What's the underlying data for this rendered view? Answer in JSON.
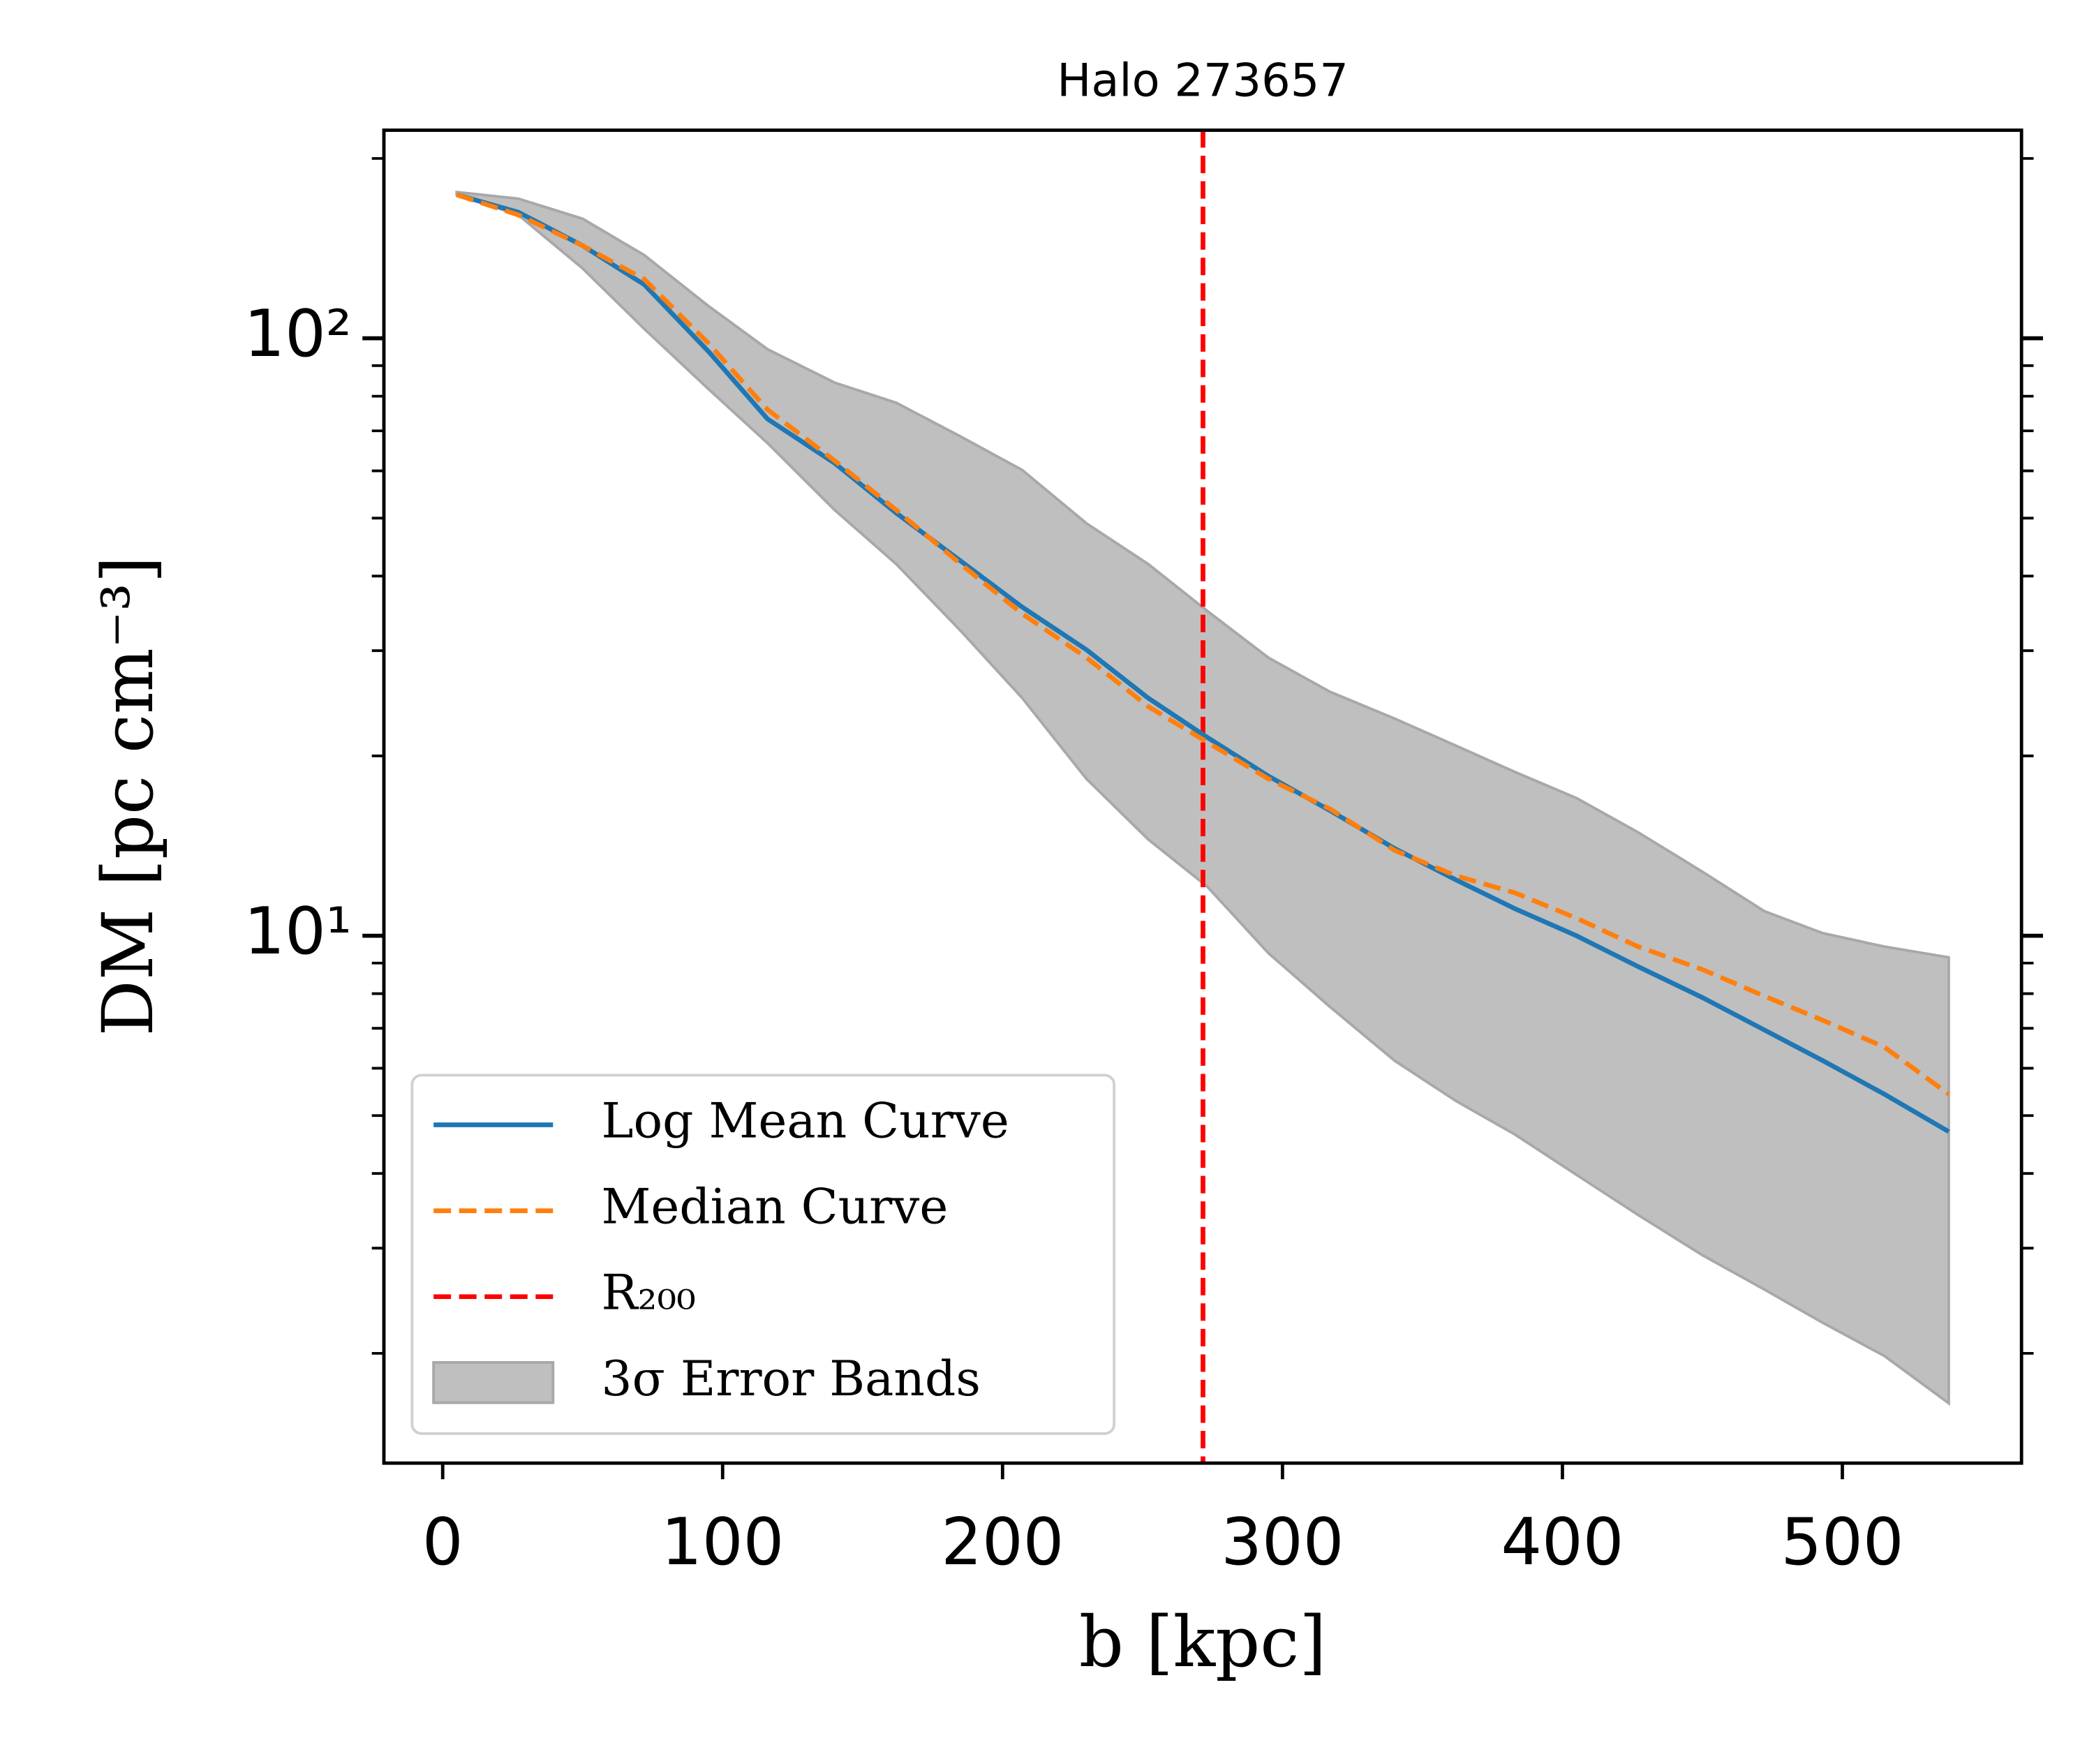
{
  "chart_data": {
    "type": "line",
    "title": "Halo 273657",
    "xlabel": "b [kpc]",
    "ylabel": "DM [pc cm⁻³]",
    "yscale": "log",
    "legend": "lower left",
    "x": [
      5,
      27,
      50,
      72,
      95,
      116,
      140,
      162,
      185,
      207,
      230,
      252,
      273,
      295,
      317,
      340,
      362,
      383,
      405,
      427,
      450,
      472,
      493,
      515,
      538
    ],
    "series": [
      {
        "name": "Log Mean Curve",
        "color": "#1f77b4",
        "style": "solid",
        "values": [
          173.9,
          162.6,
          142.9,
          123,
          95.0,
          73.3,
          61.8,
          51.0,
          42.4,
          35.5,
          30.1,
          25.0,
          21.5,
          18.5,
          16.2,
          14.0,
          12.4,
          11.1,
          10.0,
          8.88,
          7.88,
          6.96,
          6.18,
          5.43,
          4.7
        ]
      },
      {
        "name": "Median Curve",
        "color": "#ff7f0e",
        "style": "dashed",
        "values": [
          173.9,
          160.9,
          142.9,
          125.6,
          98.0,
          76.0,
          62.4,
          51.6,
          41.9,
          34.6,
          29.2,
          24.2,
          21.1,
          18.3,
          16.3,
          13.9,
          12.6,
          11.8,
          10.7,
          9.59,
          8.78,
          7.93,
          7.22,
          6.51,
          5.43
        ]
      }
    ],
    "vline": {
      "name": "R₂₀₀",
      "color": "#ff0000",
      "x": 271.6
    },
    "band": {
      "name": "3σ Error Bands",
      "color": "#bfbfbf",
      "upper": [
        175.7,
        171.3,
        158.5,
        137.8,
        113.2,
        95.9,
        84.3,
        78.0,
        68.5,
        60.2,
        49.0,
        41.9,
        35.0,
        29.2,
        25.6,
        23.1,
        20.8,
        18.8,
        17.0,
        14.9,
        12.8,
        11.0,
        10.1,
        9.59,
        9.2
      ],
      "lower": [
        173.9,
        160.9,
        130.9,
        103.7,
        82.2,
        66.8,
        51.6,
        41.9,
        32.4,
        25.0,
        18.3,
        14.5,
        12.1,
        9.35,
        7.6,
        6.18,
        5.29,
        4.65,
        3.98,
        3.41,
        2.92,
        2.56,
        2.25,
        1.98,
        1.65
      ]
    },
    "xlim": [
      -21,
      564
    ],
    "ylim": [
      1.31,
      223
    ],
    "xticks": [
      0,
      100,
      200,
      300,
      400,
      500
    ],
    "yticks": [
      {
        "value": 10,
        "label": "10¹"
      },
      {
        "value": 100,
        "label": "10²"
      }
    ],
    "yminorticks": [
      2,
      3,
      4,
      5,
      6,
      7,
      8,
      9,
      20,
      30,
      40,
      50,
      60,
      70,
      80,
      90,
      200
    ]
  }
}
